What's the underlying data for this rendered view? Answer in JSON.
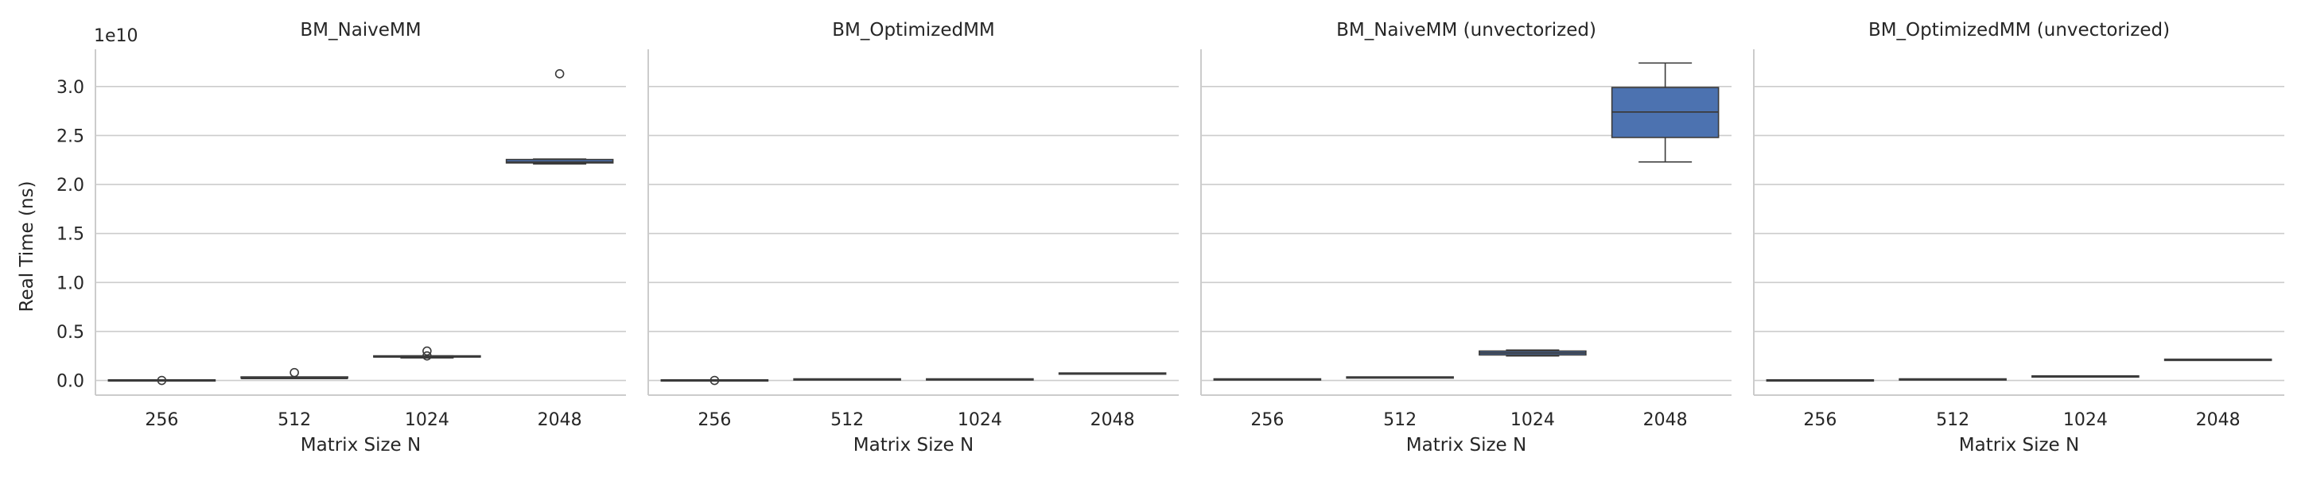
{
  "figure": {
    "ylabel": "Real Time (ns)",
    "y_multiplier": "1e10",
    "xlabel": "Matrix Size N",
    "box_color": "#4c72b0",
    "line_color": "#3b3b3b",
    "grid_color": "#cccccc",
    "axis_color": "#cccccc"
  },
  "chart_data": {
    "type": "box",
    "layout": "facet-row",
    "grid": true,
    "categories": [
      "256",
      "512",
      "1024",
      "2048"
    ],
    "yticks": [
      "0.0",
      "0.5",
      "1.0",
      "1.5",
      "2.0",
      "2.5",
      "3.0"
    ],
    "ylim": [
      -0.15,
      3.38
    ],
    "yunit_multiplier": 10000000000.0,
    "panels": [
      {
        "title": "BM_NaiveMM",
        "boxes": [
          {
            "category": "256",
            "whislo": 0.0,
            "q1": 0.0,
            "med": 0.0,
            "q3": 0.0,
            "whishi": 0.0,
            "fliers": [
              0.0
            ]
          },
          {
            "category": "512",
            "whislo": 0.02,
            "q1": 0.02,
            "med": 0.02,
            "q3": 0.03,
            "whishi": 0.03,
            "fliers": [
              0.08
            ]
          },
          {
            "category": "1024",
            "whislo": 0.23,
            "q1": 0.235,
            "med": 0.24,
            "q3": 0.245,
            "whishi": 0.25,
            "fliers": [
              0.25,
              0.3
            ]
          },
          {
            "category": "2048",
            "whislo": 2.21,
            "q1": 2.22,
            "med": 2.23,
            "q3": 2.255,
            "whishi": 2.26,
            "fliers": [
              3.13
            ]
          }
        ]
      },
      {
        "title": "BM_OptimizedMM",
        "boxes": [
          {
            "category": "256",
            "whislo": 0.0,
            "q1": 0.0,
            "med": 0.0,
            "q3": 0.0,
            "whishi": 0.0,
            "fliers": [
              0.0
            ]
          },
          {
            "category": "512",
            "whislo": 0.01,
            "q1": 0.01,
            "med": 0.01,
            "q3": 0.01,
            "whishi": 0.01,
            "fliers": []
          },
          {
            "category": "1024",
            "whislo": 0.01,
            "q1": 0.01,
            "med": 0.01,
            "q3": 0.01,
            "whishi": 0.01,
            "fliers": []
          },
          {
            "category": "2048",
            "whislo": 0.07,
            "q1": 0.07,
            "med": 0.07,
            "q3": 0.07,
            "whishi": 0.07,
            "fliers": []
          }
        ]
      },
      {
        "title": "BM_NaiveMM (unvectorized)",
        "boxes": [
          {
            "category": "256",
            "whislo": 0.01,
            "q1": 0.01,
            "med": 0.01,
            "q3": 0.01,
            "whishi": 0.01,
            "fliers": []
          },
          {
            "category": "512",
            "whislo": 0.03,
            "q1": 0.03,
            "med": 0.03,
            "q3": 0.03,
            "whishi": 0.03,
            "fliers": []
          },
          {
            "category": "1024",
            "whislo": 0.25,
            "q1": 0.26,
            "med": 0.28,
            "q3": 0.3,
            "whishi": 0.31,
            "fliers": []
          },
          {
            "category": "2048",
            "whislo": 2.23,
            "q1": 2.48,
            "med": 2.74,
            "q3": 2.99,
            "whishi": 3.24,
            "fliers": []
          }
        ]
      },
      {
        "title": "BM_OptimizedMM (unvectorized)",
        "boxes": [
          {
            "category": "256",
            "whislo": 0.0,
            "q1": 0.0,
            "med": 0.0,
            "q3": 0.0,
            "whishi": 0.0,
            "fliers": []
          },
          {
            "category": "512",
            "whislo": 0.01,
            "q1": 0.01,
            "med": 0.01,
            "q3": 0.01,
            "whishi": 0.01,
            "fliers": []
          },
          {
            "category": "1024",
            "whislo": 0.04,
            "q1": 0.04,
            "med": 0.04,
            "q3": 0.04,
            "whishi": 0.04,
            "fliers": []
          },
          {
            "category": "2048",
            "whislo": 0.21,
            "q1": 0.21,
            "med": 0.21,
            "q3": 0.21,
            "whishi": 0.21,
            "fliers": []
          }
        ]
      }
    ]
  }
}
